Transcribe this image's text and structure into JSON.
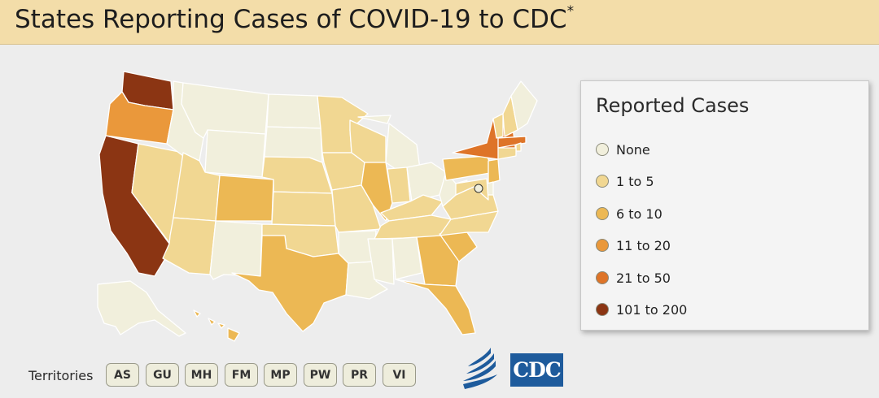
{
  "header": {
    "title": "States Reporting Cases of COVID-19 to CDC",
    "title_mark": "*"
  },
  "legend": {
    "title": "Reported Cases",
    "items": [
      {
        "label": "None",
        "color": "#f1efdc"
      },
      {
        "label": "1 to 5",
        "color": "#f1d792"
      },
      {
        "label": "6 to 10",
        "color": "#ecb854"
      },
      {
        "label": "11 to 20",
        "color": "#ea983b"
      },
      {
        "label": "21 to 50",
        "color": "#de7428"
      },
      {
        "label": "101 to 200",
        "color": "#8b3513"
      }
    ]
  },
  "territories": {
    "label": "Territories",
    "buttons": [
      "AS",
      "GU",
      "MH",
      "FM",
      "MP",
      "PW",
      "PR",
      "VI"
    ]
  },
  "logos": {
    "cdc_text": "CDC"
  },
  "map": {
    "category_colors": [
      "#f1efdc",
      "#f1d792",
      "#ecb854",
      "#ea983b",
      "#de7428",
      "#8b3513"
    ],
    "states": {
      "WA": 5,
      "OR": 3,
      "CA": 5,
      "NV": 1,
      "ID": 0,
      "MT": 0,
      "WY": 0,
      "UT": 1,
      "AZ": 1,
      "CO": 2,
      "NM": 0,
      "ND": 0,
      "SD": 0,
      "NE": 1,
      "KS": 1,
      "OK": 1,
      "TX": 2,
      "MN": 1,
      "IA": 1,
      "MO": 1,
      "AR": 0,
      "LA": 0,
      "WI": 1,
      "IL": 2,
      "MI": 0,
      "IN": 1,
      "OH": 0,
      "KY": 1,
      "TN": 1,
      "MS": 0,
      "AL": 0,
      "GA": 2,
      "FL": 2,
      "SC": 2,
      "NC": 1,
      "VA": 1,
      "WV": 0,
      "PA": 2,
      "NY": 4,
      "VT": 1,
      "NH": 1,
      "ME": 0,
      "MA": 4,
      "RI": 1,
      "CT": 1,
      "NJ": 2,
      "DE": 0,
      "MD": 1,
      "AK": 0,
      "HI": 2,
      "DC": 0
    }
  }
}
